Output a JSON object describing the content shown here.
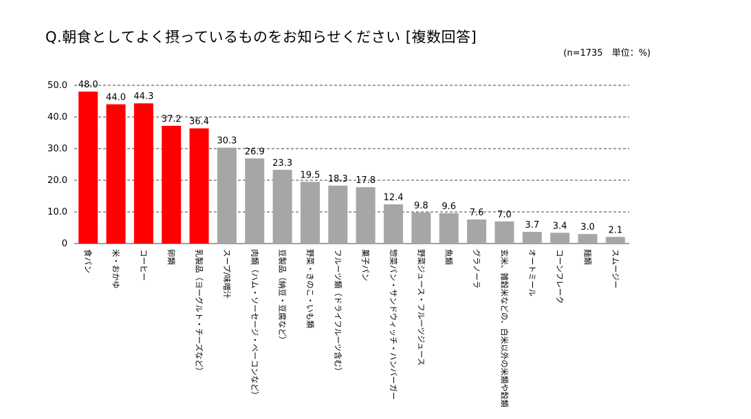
{
  "chart_data": {
    "type": "bar",
    "title": "Q.朝食としてよく摂っているものをお知らせください [複数回答]",
    "note": "(n=1735　単位：%)",
    "ylim": [
      0,
      50
    ],
    "yticks": [
      "0",
      "10.0",
      "20.0",
      "30.0",
      "40.0",
      "50.0"
    ],
    "highlight_color": "#ff0000",
    "base_color": "#a6a6a6",
    "highlight_count": 5,
    "categories": [
      "食パン",
      "米・おかゆ",
      "コーヒー",
      "卵類",
      "乳製品（ヨーグルト・チーズなど）",
      "スープ/味噌汁",
      "肉類（ハム・ソーセージ・ベーコンなど）",
      "豆製品（納豆・豆腐など）",
      "野菜・きのこ・いも類",
      "フルーツ類（ドライフルーツ含む）",
      "菓子パン",
      "惣菜パン・サンドウィッチ・ハンバーガー",
      "野菜ジュース・フルーツジュース",
      "魚類",
      "グラノーラ",
      "玄米、雑穀米などの、白米以外の米類や穀類",
      "オートミール",
      "コーンフレーク",
      "麺類",
      "スムージー"
    ],
    "values": [
      48.0,
      44.0,
      44.3,
      37.2,
      36.4,
      30.3,
      26.9,
      23.3,
      19.5,
      18.3,
      17.8,
      12.4,
      9.8,
      9.6,
      7.6,
      7.0,
      3.7,
      3.4,
      3.0,
      2.1
    ],
    "value_labels": [
      "48.0",
      "44.0",
      "44.3",
      "37.2",
      "36.4",
      "30.3",
      "26.9",
      "23.3",
      "19.5",
      "18.3",
      "17.8",
      "12.4",
      "9.8",
      "9.6",
      "7.6",
      "7.0",
      "3.7",
      "3.4",
      "3.0",
      "2.1"
    ]
  }
}
